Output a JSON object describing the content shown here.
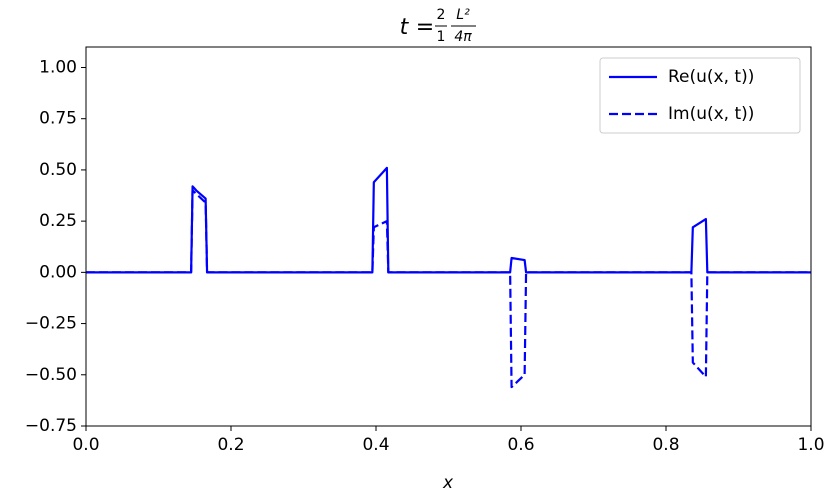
{
  "chart_data": {
    "type": "line",
    "title": {
      "variable": "t",
      "equals": "=",
      "fraction1": {
        "numerator": "2",
        "denominator": "1"
      },
      "fraction2": {
        "numerator": "L²",
        "denominator": "4π"
      }
    },
    "x_label": "x",
    "xlim": [
      0,
      1
    ],
    "ylim": [
      -0.75,
      1.1
    ],
    "xticks": [
      {
        "value": 0,
        "label": "0.0"
      },
      0.2,
      0.4,
      0.6,
      0.8,
      {
        "value": 1,
        "label": "1.0"
      }
    ],
    "yticks": [
      {
        "value": -0.75,
        "label": "−0.75"
      },
      {
        "value": -0.5,
        "label": "−0.50"
      },
      {
        "value": -0.25,
        "label": "−0.25"
      },
      {
        "value": 0,
        "label": "0.00"
      },
      0.25,
      {
        "value": 0.5,
        "label": "0.50"
      },
      0.75,
      {
        "value": 1,
        "label": "1.00"
      }
    ],
    "grid": false,
    "legend": "upper right",
    "series": [
      {
        "name": "Re(u(x, t))",
        "color": "#0000ff",
        "dash": "solid",
        "x": [
          0,
          0.145,
          0.147,
          0.152,
          0.165,
          0.167,
          0.395,
          0.397,
          0.415,
          0.417,
          0.585,
          0.587,
          0.605,
          0.607,
          0.835,
          0.837,
          0.855,
          0.857,
          1
        ],
        "values": [
          0,
          0,
          0.42,
          0.4,
          0.36,
          0,
          0,
          0.44,
          0.51,
          0,
          0,
          0.07,
          0.06,
          0,
          0,
          0.22,
          0.26,
          0,
          0
        ]
      },
      {
        "name": "Im(u(x, t))",
        "color": "#0000ff",
        "dash": "dashed",
        "x": [
          0,
          0.145,
          0.147,
          0.165,
          0.167,
          0.395,
          0.397,
          0.415,
          0.417,
          0.585,
          0.587,
          0.605,
          0.607,
          0.835,
          0.837,
          0.855,
          0.857,
          1
        ],
        "values": [
          0,
          0,
          0.4,
          0.34,
          0,
          0,
          0.22,
          0.25,
          0,
          0,
          -0.56,
          -0.5,
          0,
          0,
          -0.44,
          -0.51,
          0,
          0
        ]
      }
    ]
  }
}
